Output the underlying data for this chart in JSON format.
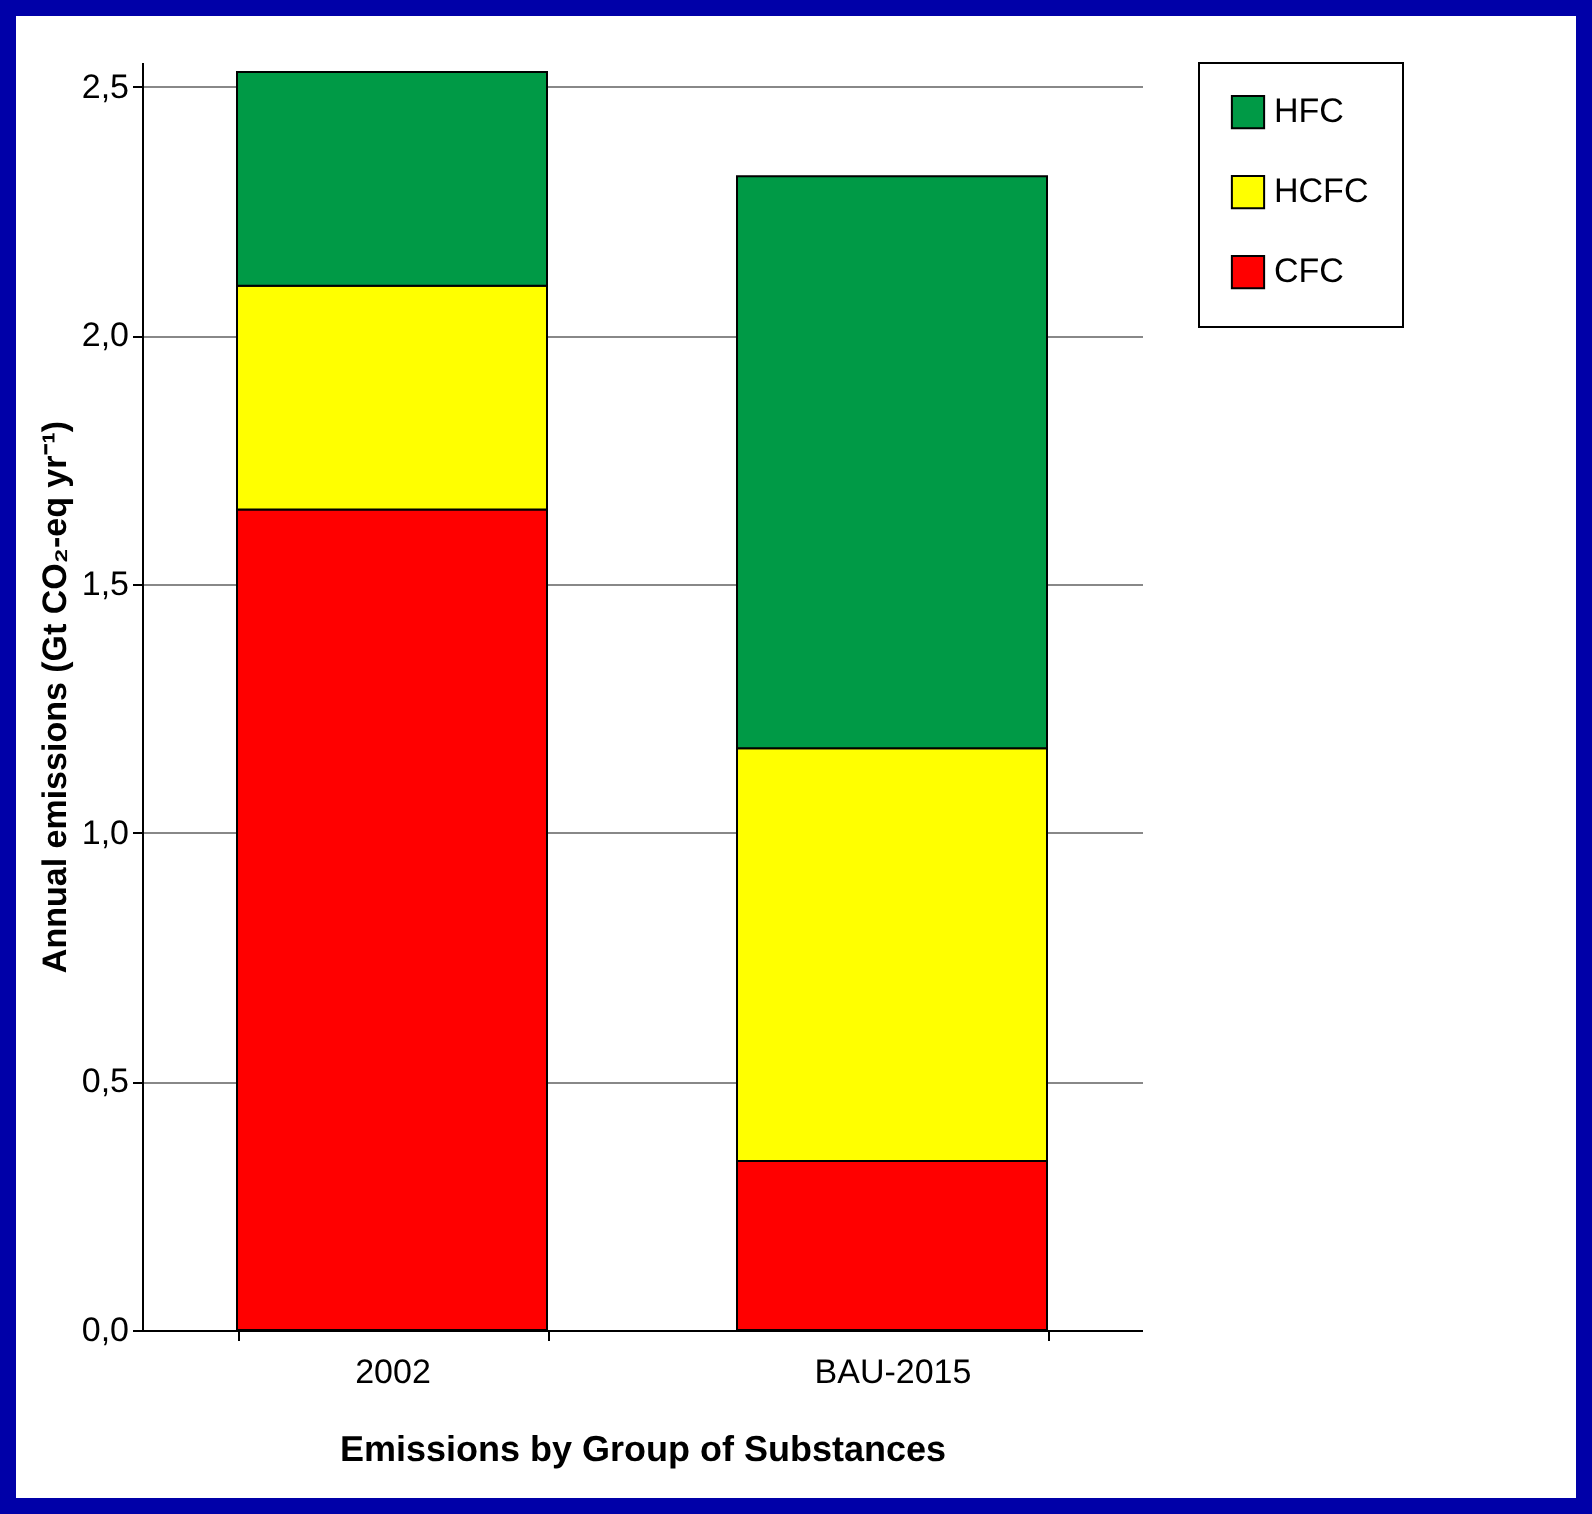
{
  "chart_data": {
    "type": "bar",
    "stacked": true,
    "xlabel": "Emissions by Group of Substances",
    "ylabel": "Annual emissions (Gt CO₂-eq yr⁻¹)",
    "categories": [
      "2002",
      "BAU-2015"
    ],
    "series": [
      {
        "name": "CFC",
        "color": "#ff0000",
        "values": [
          1.65,
          0.34
        ]
      },
      {
        "name": "HCFC",
        "color": "#ffff00",
        "values": [
          0.45,
          0.83
        ]
      },
      {
        "name": "HFC",
        "color": "#009a46",
        "values": [
          0.43,
          1.15
        ]
      }
    ],
    "ylim": [
      0,
      2.55
    ],
    "yticks": [
      {
        "value": 0,
        "label": "0,0"
      },
      {
        "value": 0.5,
        "label": "0,5"
      },
      {
        "value": 1,
        "label": "1,0"
      },
      {
        "value": 1.5,
        "label": "1,5"
      },
      {
        "value": 2,
        "label": "2,0"
      },
      {
        "value": 2.5,
        "label": "2,5"
      }
    ],
    "grid": "y",
    "legend": "top right"
  }
}
